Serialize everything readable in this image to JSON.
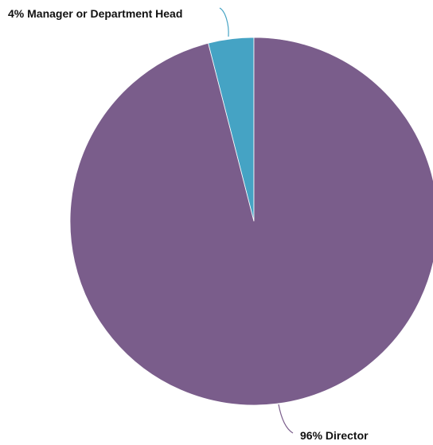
{
  "chart_data": {
    "type": "pie",
    "title": "",
    "slices": [
      {
        "label": "Manager or Department Head",
        "value": 4,
        "display": "4% Manager or Department Head",
        "color": "#45a3c4"
      },
      {
        "label": "Director",
        "value": 96,
        "display": "96% Director",
        "color": "#7a5d8b"
      }
    ],
    "legend": "none",
    "label_style": "outside labels with leader lines"
  }
}
